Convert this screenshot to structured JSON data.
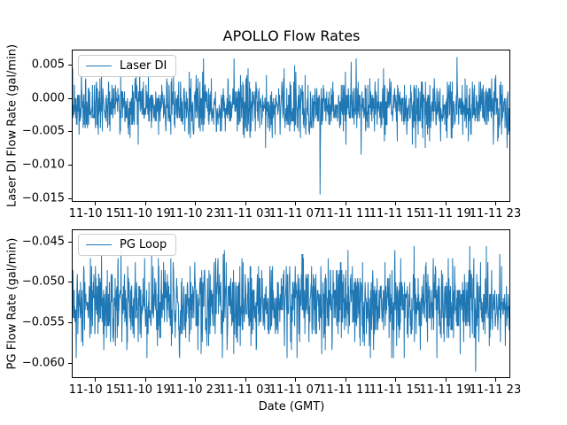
{
  "chart_data": {
    "type": "line",
    "title": "APOLLO Flow Rates",
    "xlabel": "Date (GMT)",
    "line_color": "#1f77b4",
    "background_color": "#ffffff",
    "grid": false,
    "legend_position": "upper left",
    "x_axis": {
      "range_hours": [
        13.16,
        48.2
      ],
      "tick_hours": [
        15,
        19,
        23,
        27,
        31,
        35,
        39,
        43,
        47
      ],
      "tick_labels": [
        "11-10 15",
        "11-10 19",
        "11-10 23",
        "11-11 03",
        "11-11 07",
        "11-11 11",
        "11-11 15",
        "11-11 19",
        "11-11 23"
      ]
    },
    "subplots": [
      {
        "legend": "Laser DI",
        "ylabel": "Laser DI Flow Rate (gal/min)",
        "ylim": [
          -0.0155,
          0.0072
        ],
        "ytick_values": [
          0.005,
          0.0,
          -0.005,
          -0.01,
          -0.015
        ],
        "ytick_labels": [
          "0.005",
          "0.000",
          "−0.005",
          "−0.010",
          "−0.015"
        ],
        "series": {
          "name": "Laser DI",
          "color": "#1f77b4",
          "n_points": 1500,
          "seed": 7,
          "baseline": -0.00125,
          "noise_sigma": 0.002,
          "quantize": 0.0005,
          "clamp": [
            -0.0075,
            0.0062
          ],
          "tail_prob": 0.015,
          "tail_extra": [
            0.0015,
            0.0045
          ],
          "notable_spikes": [
            {
              "hour": 33.0,
              "value": -0.0145
            },
            {
              "hour": 36.3,
              "value": -0.0085
            },
            {
              "hour": 35.9,
              "value": 0.006
            },
            {
              "hour": 44.0,
              "value": 0.0062
            }
          ]
        }
      },
      {
        "legend": "PG Loop",
        "ylabel": "PG Flow Rate (gal/min)",
        "ylim": [
          -0.0619,
          -0.0435
        ],
        "ytick_values": [
          -0.045,
          -0.05,
          -0.055,
          -0.06
        ],
        "ytick_labels": [
          "−0.045",
          "−0.050",
          "−0.055",
          "−0.060"
        ],
        "series": {
          "name": "PG Loop",
          "color": "#1f77b4",
          "n_points": 1500,
          "seed": 13,
          "baseline": -0.0527,
          "noise_sigma": 0.0025,
          "quantize": 0.0005,
          "clamp": [
            -0.0595,
            -0.0443
          ],
          "tail_prob": 0.02,
          "tail_extra": [
            0.0015,
            0.0045
          ],
          "notable_spikes": [
            {
              "hour": 45.5,
              "value": -0.0612
            }
          ]
        }
      }
    ]
  }
}
